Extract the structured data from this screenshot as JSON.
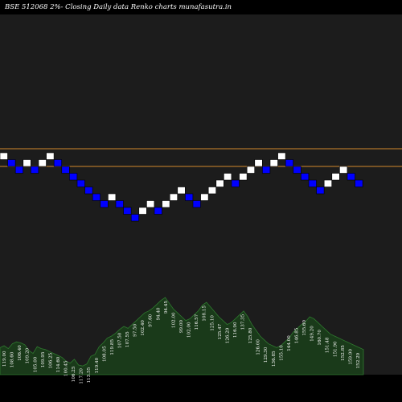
{
  "colors": {
    "background": "#000000",
    "panel": "#1c1c1c",
    "up_brick": "#ffffff",
    "down_brick": "#0000ff",
    "reference_line": "#d2882c",
    "volume_fill": "#1a3a1a",
    "volume_edge": "#2f7a2f",
    "text": "#ffffff"
  },
  "chart_data": {
    "type": "renko",
    "title": "BSE 512068  2%-  Closing Daily data  Renko  charts munafasutra.in",
    "reference_lines": [
      "upper",
      "lower"
    ],
    "bricks": [
      "up",
      "down",
      "down",
      "up",
      "down",
      "up",
      "up",
      "down",
      "down",
      "down",
      "down",
      "down",
      "down",
      "down",
      "up",
      "down",
      "down",
      "down",
      "up",
      "up",
      "down",
      "up",
      "up",
      "up",
      "down",
      "down",
      "up",
      "up",
      "up",
      "up",
      "down",
      "up",
      "up",
      "up",
      "down",
      "up",
      "up",
      "down",
      "down",
      "down",
      "down",
      "down",
      "up",
      "up",
      "up",
      "down",
      "down"
    ],
    "brick_labels": [
      "119.00",
      "108.60",
      "106.40",
      "109.20",
      "105.00",
      "109.95",
      "106.25",
      "114.60",
      "100.45",
      "106.25",
      "117.20",
      "113.55",
      "119.40",
      "108.05",
      "119.85",
      "107.50",
      "107.55",
      "97.50",
      "102.40",
      "97.60",
      "94.40",
      "94.45",
      "102.00",
      "99.00",
      "102.00",
      "116.57",
      "108.15",
      "125.10",
      "125.47",
      "126.29",
      "116.90",
      "137.35",
      "125.80",
      "126.00",
      "129.30",
      "136.85",
      "155.10",
      "144.00",
      "146.85",
      "155.60",
      "149.20",
      "160.70",
      "151.48",
      "151.90",
      "152.85",
      "159.90",
      "152.29"
    ],
    "volume_levels": [
      0.28,
      0.3,
      0.27,
      0.32,
      0.34,
      0.33,
      0.31,
      0.25,
      0.22,
      0.29,
      0.27,
      0.26,
      0.24,
      0.22,
      0.2,
      0.18,
      0.14,
      0.12,
      0.16,
      0.1,
      0.09,
      0.11,
      0.19,
      0.21,
      0.29,
      0.33,
      0.38,
      0.4,
      0.43,
      0.47,
      0.5,
      0.48,
      0.52,
      0.56,
      0.6,
      0.64,
      0.66,
      0.69,
      0.73,
      0.77,
      0.8,
      0.74,
      0.68,
      0.64,
      0.6,
      0.56,
      0.58,
      0.62,
      0.66,
      0.72,
      0.75,
      0.7,
      0.65,
      0.6,
      0.56,
      0.52,
      0.54,
      0.58,
      0.62,
      0.66,
      0.6,
      0.52,
      0.46,
      0.4,
      0.36,
      0.32,
      0.3,
      0.28,
      0.3,
      0.34,
      0.38,
      0.44,
      0.48,
      0.52,
      0.55,
      0.6,
      0.58,
      0.54,
      0.5,
      0.46,
      0.42,
      0.4,
      0.38,
      0.36,
      0.34,
      0.32,
      0.3,
      0.28,
      0.26
    ]
  }
}
